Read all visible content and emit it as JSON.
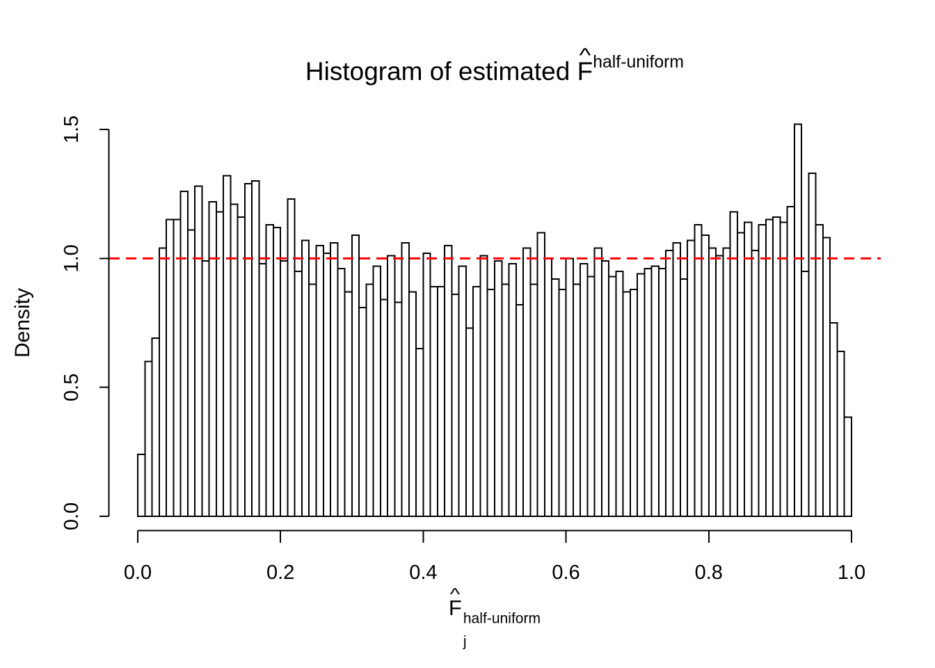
{
  "chart_data": {
    "type": "bar",
    "subtype": "histogram",
    "title": {
      "prefix": "Histogram of estimated ",
      "symbol": "F",
      "hat": "^",
      "superscript": "half-uniform"
    },
    "xlabel": {
      "symbol": "F",
      "hat": "^",
      "subscript": "j",
      "superscript": "half-uniform"
    },
    "ylabel": "Density",
    "xlim": [
      0.0,
      1.0
    ],
    "ylim": [
      0.0,
      1.5
    ],
    "bin_start": 0.0,
    "bin_width": 0.01,
    "grid": false,
    "x_ticks": [
      "0.0",
      "0.2",
      "0.4",
      "0.6",
      "0.8",
      "1.0"
    ],
    "x_tick_values": [
      0.0,
      0.2,
      0.4,
      0.6,
      0.8,
      1.0
    ],
    "y_ticks": [
      "0.0",
      "0.5",
      "1.0",
      "1.5"
    ],
    "y_tick_values": [
      0.0,
      0.5,
      1.0,
      1.5
    ],
    "bar_fill": "#ffffff",
    "bar_stroke": "#000000",
    "axis_color": "#000000",
    "reference_line": {
      "y": 1.0,
      "color": "#ff0000",
      "style": "dashed"
    },
    "values": [
      0.24,
      0.6,
      0.69,
      1.04,
      1.15,
      1.15,
      1.26,
      1.11,
      1.28,
      0.99,
      1.22,
      1.18,
      1.32,
      1.21,
      1.16,
      1.29,
      1.3,
      0.98,
      1.13,
      1.12,
      0.99,
      1.23,
      0.95,
      1.07,
      0.9,
      1.05,
      1.02,
      1.06,
      0.96,
      0.87,
      1.09,
      0.81,
      0.9,
      0.97,
      0.84,
      1.01,
      0.83,
      1.06,
      0.87,
      0.65,
      1.02,
      0.89,
      0.89,
      1.05,
      0.86,
      0.97,
      0.73,
      0.89,
      1.01,
      0.88,
      0.99,
      0.9,
      0.98,
      0.82,
      1.04,
      0.9,
      1.1,
      1.0,
      0.92,
      0.88,
      1.0,
      0.9,
      0.98,
      0.93,
      1.04,
      0.99,
      0.93,
      0.95,
      0.87,
      0.88,
      0.94,
      0.96,
      0.97,
      0.96,
      1.03,
      1.06,
      0.92,
      1.07,
      1.13,
      1.09,
      1.04,
      1.01,
      1.04,
      1.18,
      1.1,
      1.14,
      1.03,
      1.13,
      1.15,
      1.16,
      1.14,
      1.2,
      1.52,
      0.95,
      1.33,
      1.13,
      1.08,
      0.75,
      0.64,
      0.385
    ]
  }
}
